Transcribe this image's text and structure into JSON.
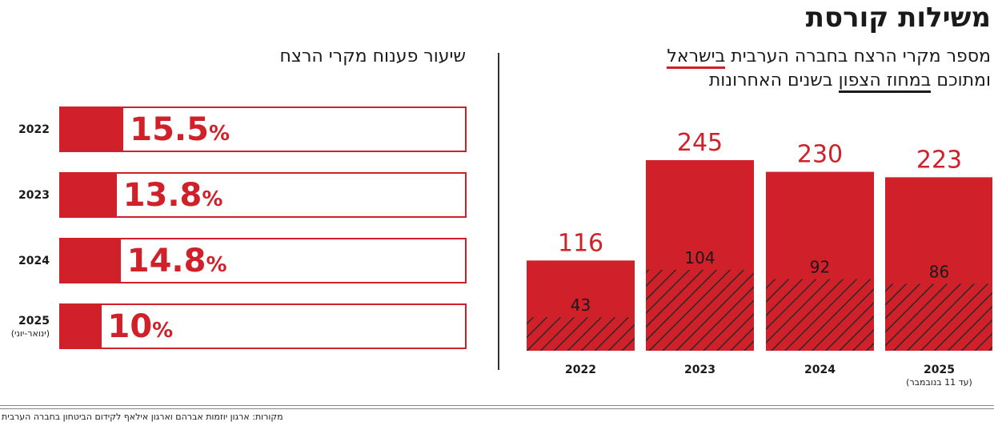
{
  "title": "משילות קורסת",
  "source": "מקורות: ארגון יוזמות אברהם וארגון אילאף לקידום הביטחון בחברה הערבית",
  "left_panel": {
    "title": "שיעור פענוח מקרי הרצח",
    "percent_sign": "%"
  },
  "right_panel": {
    "title_line1_pre": "מספר מקרי הרצח בחברה הערבית ",
    "title_line1_ul": "בישראל",
    "title_line2_pre": "ומתוכם ",
    "title_line2_ul": "במחוז הצפון",
    "title_line2_post": " בשנים האחרונות"
  },
  "colors": {
    "accent": "#d0202a",
    "hatch": "#2a2a2a",
    "text": "#1a1a1a"
  },
  "chart_data": [
    {
      "type": "bar",
      "orientation": "horizontal",
      "categories": [
        "2022",
        "2023",
        "2024",
        "2025"
      ],
      "category_notes": [
        "",
        "",
        "",
        "(ינואר-יוני)"
      ],
      "values": [
        15.5,
        13.8,
        14.8,
        10
      ],
      "value_labels": [
        "15.5",
        "13.8",
        "14.8",
        "10"
      ],
      "unit": "%",
      "title": "שיעור פענוח מקרי הרצח",
      "xlim": [
        0,
        100
      ]
    },
    {
      "type": "bar",
      "stacked_overlay": true,
      "categories": [
        "2022",
        "2023",
        "2024",
        "2025"
      ],
      "category_notes": [
        "",
        "",
        "",
        "(עד 11 בנובמבר)"
      ],
      "series": [
        {
          "values": [
            116,
            245,
            230,
            223
          ]
        },
        {
          "values": [
            43,
            104,
            92,
            86
          ]
        }
      ],
      "ylim": [
        0,
        245
      ]
    }
  ]
}
